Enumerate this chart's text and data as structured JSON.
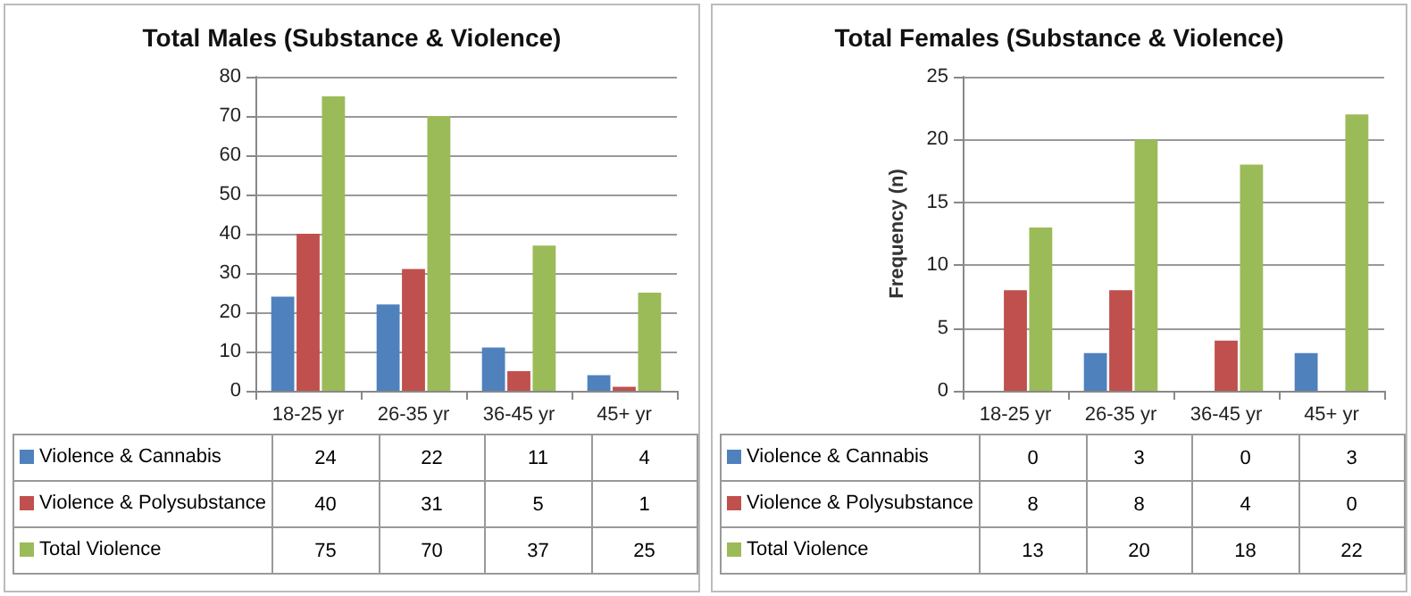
{
  "chart_data": [
    {
      "type": "bar",
      "title": "Total Males (Substance & Violence)",
      "categories": [
        "18-25 yr",
        "26-35 yr",
        "36-45 yr",
        "45+ yr"
      ],
      "series": [
        {
          "name": "Violence & Cannabis",
          "color": "#4f81bd",
          "values": [
            24,
            22,
            11,
            4
          ]
        },
        {
          "name": "Violence & Polysubstance",
          "color": "#c0504d",
          "values": [
            40,
            31,
            5,
            1
          ]
        },
        {
          "name": "Total Violence",
          "color": "#9bbb59",
          "values": [
            75,
            70,
            37,
            25
          ]
        }
      ],
      "ylim": [
        0,
        80
      ],
      "yticks": [
        0,
        10,
        20,
        30,
        40,
        50,
        60,
        70,
        80
      ],
      "grid": "y",
      "legend": "bottom",
      "data_labels": true
    },
    {
      "type": "bar",
      "title": "Total Females (Substance & Violence)",
      "ylabel": "Frequency (n)",
      "categories": [
        "18-25 yr",
        "26-35 yr",
        "36-45 yr",
        "45+ yr"
      ],
      "series": [
        {
          "name": "Violence & Cannabis",
          "color": "#4f81bd",
          "values": [
            0,
            3,
            0,
            3
          ]
        },
        {
          "name": "Violence & Polysubstance",
          "color": "#c0504d",
          "values": [
            8,
            8,
            4,
            0
          ]
        },
        {
          "name": "Total Violence",
          "color": "#9bbb59",
          "values": [
            13,
            20,
            18,
            22
          ]
        }
      ],
      "ylim": [
        0,
        25
      ],
      "yticks": [
        0,
        5,
        10,
        15,
        20,
        25
      ],
      "grid": "y",
      "legend": "bottom",
      "data_labels": true
    }
  ]
}
